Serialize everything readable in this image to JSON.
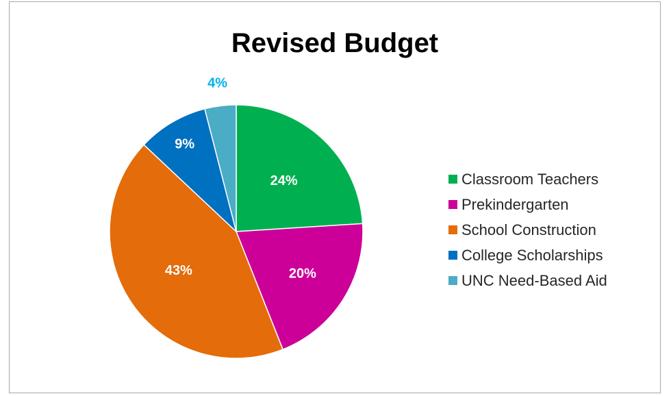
{
  "chart_data": {
    "type": "pie",
    "title": "Revised Budget",
    "categories": [
      "Classroom Teachers",
      "Prekindergarten",
      "School Construction",
      "College Scholarships",
      "UNC Need-Based Aid"
    ],
    "values": [
      24,
      20,
      43,
      9,
      4
    ],
    "data_labels": [
      "24%",
      "20%",
      "43%",
      "9%",
      "4%"
    ],
    "colors": [
      "#00b050",
      "#cc0099",
      "#e46c0a",
      "#0070c0",
      "#4bacc6"
    ],
    "label_colors": [
      "#ffffff",
      "#ffffff",
      "#ffffff",
      "#ffffff",
      "#00b0f0"
    ],
    "legend_position": "right"
  }
}
